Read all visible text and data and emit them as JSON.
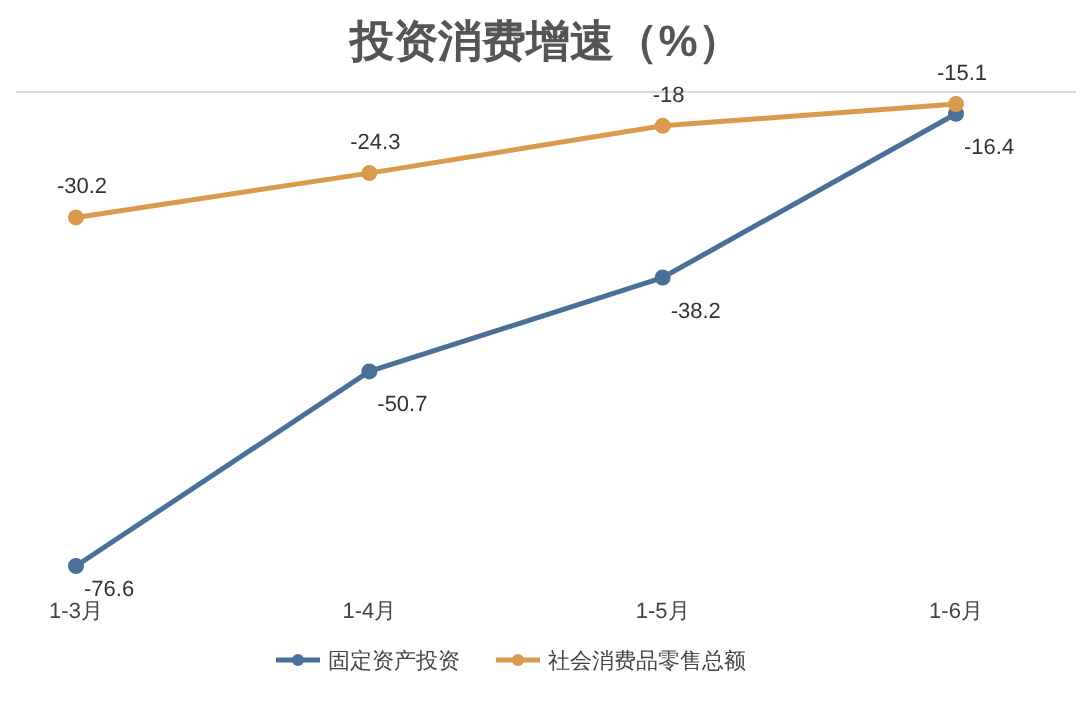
{
  "chart_data": {
    "type": "line",
    "title": "投资消费增速（%）",
    "categories": [
      "1-3月",
      "1-4月",
      "1-5月",
      "1-6月"
    ],
    "series": [
      {
        "name": "固定资产投资",
        "color": "#4a6f98",
        "values": [
          -76.6,
          -50.7,
          -38.2,
          -16.4
        ]
      },
      {
        "name": "社会消费品零售总额",
        "color": "#d99a4e",
        "values": [
          -30.2,
          -24.3,
          -18,
          -15.1
        ]
      }
    ],
    "data_labels": true,
    "marker": "circle",
    "legend": "bottom",
    "grid": false
  }
}
